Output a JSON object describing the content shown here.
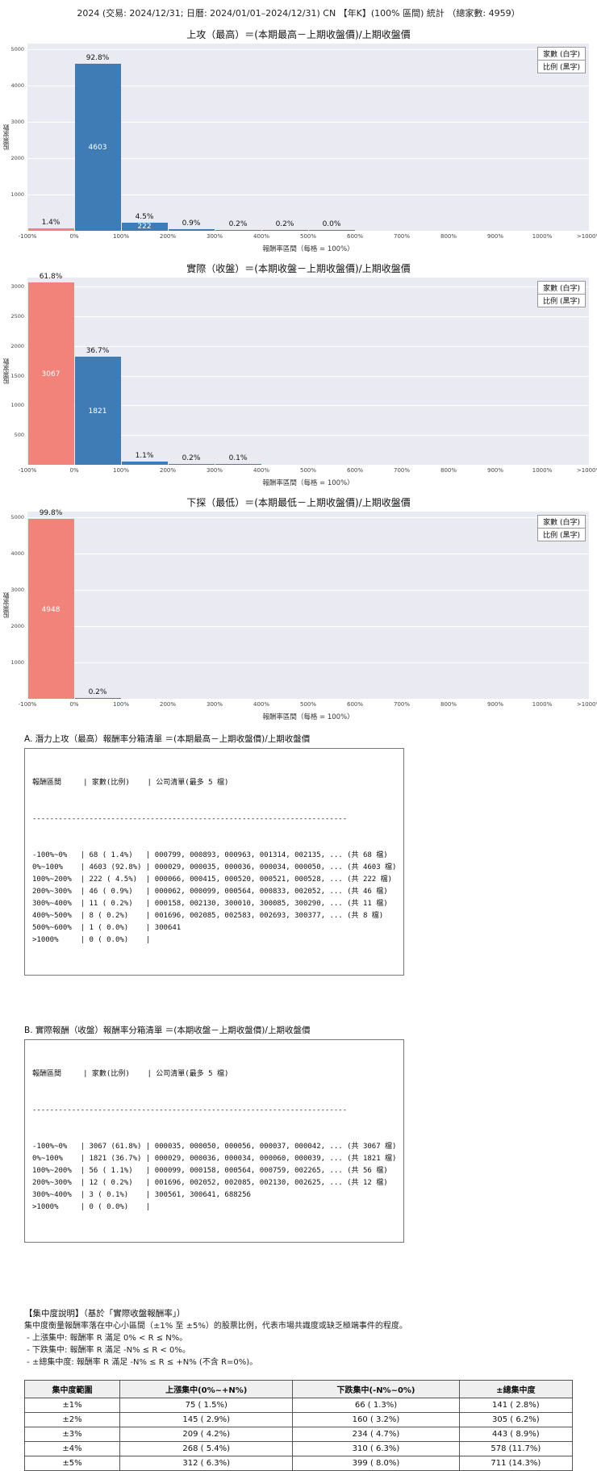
{
  "page_title": "2024 (交易: 2024/12/31; 日曆: 2024/01/01–2024/12/31) CN 【年K】(100% 區間) 統計 （總家數: 4959）",
  "colors": {
    "salmon": "#f2837b",
    "blue": "#3f7cb5",
    "plot_bg": "#eaeaf2"
  },
  "chart_data": [
    {
      "type": "bar",
      "title": "上攻（最高）＝(本期最高－上期收盤價)/上期收盤價",
      "ylabel": "股票家數",
      "xlabel": "報酬率區間（每格 = 100%）",
      "legend": [
        "家數 (白字)",
        "比例 (黑字)"
      ],
      "x_ticks": [
        "-100%",
        "0%",
        "100%",
        "200%",
        "300%",
        "400%",
        "500%",
        "600%",
        "700%",
        "800%",
        "900%",
        "1000%",
        ">1000%"
      ],
      "y_ticks": [
        1000,
        2000,
        3000,
        4000,
        5000
      ],
      "ymax": 5150,
      "grid": true,
      "legend_position": "top-right",
      "bars": [
        {
          "bin": 0,
          "label": "-100%~0%",
          "count": 68,
          "pct": "1.4%",
          "color": "salmon"
        },
        {
          "bin": 1,
          "label": "0%~100%",
          "count": 4603,
          "pct": "92.8%",
          "color": "blue"
        },
        {
          "bin": 2,
          "label": "100%~200%",
          "count": 222,
          "pct": "4.5%",
          "color": "blue"
        },
        {
          "bin": 3,
          "label": "200%~300%",
          "count": 46,
          "pct": "0.9%",
          "color": "blue"
        },
        {
          "bin": 4,
          "label": "300%~400%",
          "count": 11,
          "pct": "0.2%",
          "color": "blue"
        },
        {
          "bin": 5,
          "label": "400%~500%",
          "count": 8,
          "pct": "0.2%",
          "color": "blue"
        },
        {
          "bin": 6,
          "label": "500%~600%",
          "count": 1,
          "pct": "0.0%",
          "color": "blue"
        }
      ]
    },
    {
      "type": "bar",
      "title": "實際（收盤）＝(本期收盤－上期收盤價)/上期收盤價",
      "ylabel": "股票家數",
      "xlabel": "報酬率區間（每格 = 100%）",
      "legend": [
        "家數 (白字)",
        "比例 (黑字)"
      ],
      "x_ticks": [
        "-100%",
        "0%",
        "100%",
        "200%",
        "300%",
        "400%",
        "500%",
        "600%",
        "700%",
        "800%",
        "900%",
        "1000%",
        ">1000%"
      ],
      "y_ticks": [
        500,
        1000,
        1500,
        2000,
        2500,
        3000
      ],
      "ymax": 3150,
      "grid": true,
      "legend_position": "top-right",
      "bars": [
        {
          "bin": 0,
          "label": "-100%~0%",
          "count": 3067,
          "pct": "61.8%",
          "color": "salmon"
        },
        {
          "bin": 1,
          "label": "0%~100%",
          "count": 1821,
          "pct": "36.7%",
          "color": "blue"
        },
        {
          "bin": 2,
          "label": "100%~200%",
          "count": 56,
          "pct": "1.1%",
          "color": "blue"
        },
        {
          "bin": 3,
          "label": "200%~300%",
          "count": 12,
          "pct": "0.2%",
          "color": "blue"
        },
        {
          "bin": 4,
          "label": "300%~400%",
          "count": 3,
          "pct": "0.1%",
          "color": "blue"
        }
      ]
    },
    {
      "type": "bar",
      "title": "下探（最低）＝(本期最低－上期收盤價)/上期收盤價",
      "ylabel": "股票家數",
      "xlabel": "報酬率區間（每格 = 100%）",
      "legend": [
        "家數 (白字)",
        "比例 (黑字)"
      ],
      "x_ticks": [
        "-100%",
        "0%",
        "100%",
        "200%",
        "300%",
        "400%",
        "500%",
        "600%",
        "700%",
        "800%",
        "900%",
        "1000%",
        ">1000%"
      ],
      "y_ticks": [
        1000,
        2000,
        3000,
        4000,
        5000
      ],
      "ymax": 5150,
      "grid": true,
      "legend_position": "top-right",
      "bars": [
        {
          "bin": 0,
          "label": "-100%~0%",
          "count": 4948,
          "pct": "99.8%",
          "color": "salmon"
        },
        {
          "bin": 1,
          "label": "0%~100%",
          "count": 11,
          "pct": "0.2%",
          "color": "blue"
        }
      ]
    }
  ],
  "section_a": {
    "heading": "A. 潛力上攻（最高）報酬率分箱清單 ＝(本期最高－上期收盤價)/上期收盤價",
    "col_header": "報酬區間     | 家數(比例)    | 公司清單(最多 5 檔)",
    "divider": "------------------------------------------------------------------------",
    "rows": [
      "-100%~0%   | 68 ( 1.4%)   | 000799, 000893, 000963, 001314, 002135, ... (共 68 檔)",
      "0%~100%    | 4603 (92.8%) | 000029, 000035, 000036, 000034, 000050, ... (共 4603 檔)",
      "100%~200%  | 222 ( 4.5%)  | 000066, 000415, 000520, 000521, 000528, ... (共 222 檔)",
      "200%~300%  | 46 ( 0.9%)   | 000062, 000099, 000564, 000833, 002052, ... (共 46 檔)",
      "300%~400%  | 11 ( 0.2%)   | 000158, 002130, 300010, 300085, 300290, ... (共 11 檔)",
      "400%~500%  | 8 ( 0.2%)    | 001696, 002085, 002583, 002693, 300377, ... (共 8 檔)",
      "500%~600%  | 1 ( 0.0%)    | 300641",
      ">1000%     | 0 ( 0.0%)    |"
    ]
  },
  "section_b": {
    "heading": "B. 實際報酬（收盤）報酬率分箱清單 ＝(本期收盤－上期收盤價)/上期收盤價",
    "col_header": "報酬區間     | 家數(比例)    | 公司清單(最多 5 檔)",
    "divider": "------------------------------------------------------------------------",
    "rows": [
      "-100%~0%   | 3067 (61.8%) | 000035, 000050, 000056, 000037, 000042, ... (共 3067 檔)",
      "0%~100%    | 1821 (36.7%) | 000029, 000036, 000034, 000060, 000039, ... (共 1821 檔)",
      "100%~200%  | 56 ( 1.1%)   | 000099, 000158, 000564, 000759, 002265, ... (共 56 檔)",
      "200%~300%  | 12 ( 0.2%)   | 001696, 002052, 002085, 002130, 002625, ... (共 12 檔)",
      "300%~400%  | 3 ( 0.1%)    | 300561, 300641, 688256",
      ">1000%     | 0 ( 0.0%)    |"
    ]
  },
  "concentration": {
    "title": "【集中度說明】（基於「實際收盤報酬率」）",
    "lines": [
      "集中度衡量報酬率落在中心小區間（±1% 至 ±5%）的股票比例，代表市場共識度或缺乏極端事件的程度。",
      " - 上漲集中: 報酬率 R 滿足 0% < R ≤ N%。",
      " - 下跌集中: 報酬率 R 滿足 -N% ≤ R < 0%。",
      " - ±總集中度: 報酬率 R 滿足 -N% ≤ R ≤ +N% (不含 R=0%)。"
    ]
  },
  "concentration_table": {
    "headers": [
      "集中度範圍",
      "上漲集中(0%~+N%)",
      "下跌集中(-N%~0%)",
      "±總集中度"
    ],
    "rows": [
      [
        "±1%",
        "75 ( 1.5%)",
        "66 ( 1.3%)",
        "141 ( 2.8%)"
      ],
      [
        "±2%",
        "145 ( 2.9%)",
        "160 ( 3.2%)",
        "305 ( 6.2%)"
      ],
      [
        "±3%",
        "209 ( 4.2%)",
        "234 ( 4.7%)",
        "443 ( 8.9%)"
      ],
      [
        "±4%",
        "268 ( 5.4%)",
        "310 ( 6.3%)",
        "578 (11.7%)"
      ],
      [
        "±5%",
        "312 ( 6.3%)",
        "399 ( 8.0%)",
        "711 (14.3%)"
      ]
    ]
  }
}
